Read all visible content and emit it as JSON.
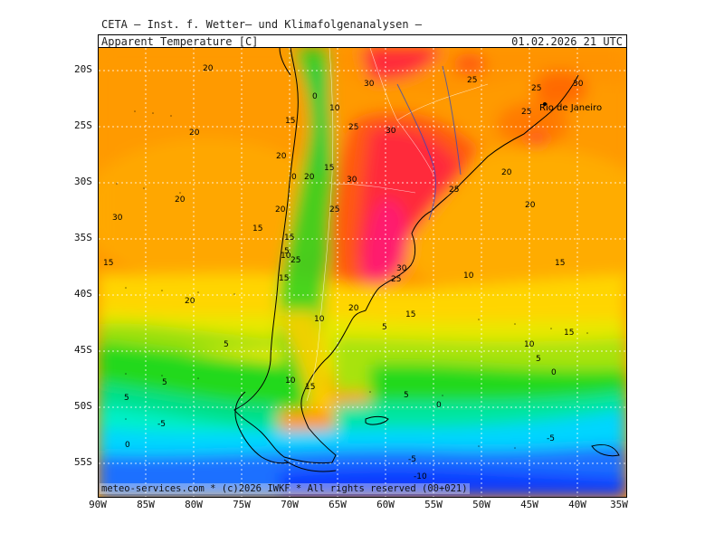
{
  "header": {
    "title": "CETA – Inst. f. Wetter– und Klimafolgenanalysen –",
    "parameter": "Apparent_Temperature [C]",
    "valid_time": "01.02.2026 21 UTC"
  },
  "footer": {
    "credit": "meteo-services.com * (c)2026 IWKF * All rights reserved (00+021)"
  },
  "map": {
    "place_label": "Rio de Janeiro",
    "lat_ticks": [
      "20S",
      "25S",
      "30S",
      "35S",
      "40S",
      "45S",
      "50S",
      "55S"
    ],
    "lon_ticks": [
      "90W",
      "85W",
      "80W",
      "75W",
      "70W",
      "65W",
      "60W",
      "55W",
      "50W",
      "45W",
      "40W",
      "35W"
    ],
    "contour_labels": [
      "20",
      "30",
      "25",
      "25",
      "30",
      "0",
      "10",
      "15",
      "25",
      "20",
      "25",
      "30",
      "15",
      "20",
      "0",
      "20",
      "30",
      "25",
      "20",
      "20",
      "20",
      "25",
      "20",
      "30",
      "15",
      "15",
      "5",
      "10",
      "25",
      "15",
      "30",
      "15",
      "25",
      "15",
      "10",
      "20",
      "20",
      "10",
      "15",
      "5",
      "15",
      "10",
      "5",
      "5",
      "10",
      "0",
      "5",
      "5",
      "15",
      "0",
      "5",
      "-5",
      "0",
      "-5",
      "-5",
      "-10"
    ],
    "palette": {
      "deep_blue": "#0b3bff",
      "blue": "#1e6fff",
      "cyan": "#00d5ff",
      "aqua": "#00f0c8",
      "green": "#21d91a",
      "yellowgreen": "#9ae00a",
      "yellow": "#ffe800",
      "orange_light": "#ffbf00",
      "orange": "#ff9a00",
      "orange_dark": "#ff7a00",
      "red": "#ff3a1a",
      "magenta": "#ff1a6e"
    }
  }
}
